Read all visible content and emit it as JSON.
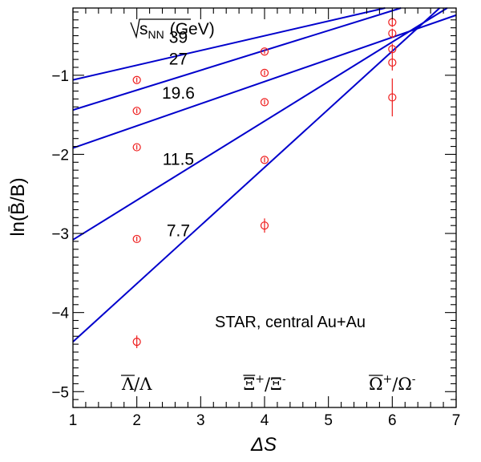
{
  "chart_data": {
    "type": "scatter",
    "xlabel": "ΔS",
    "ylabel": "ln(B̄/B)",
    "xlim": [
      1,
      7
    ],
    "ylim": [
      -5.2,
      -0.15
    ],
    "x_ticks": [
      "1",
      "2",
      "3",
      "4",
      "5",
      "6",
      "7"
    ],
    "y_ticks": [
      "−5",
      "−4",
      "−3",
      "−2",
      "−1"
    ],
    "grid": false,
    "legend": "none",
    "colors": {
      "fit_line": "#0000cc",
      "points": "#ee1c1c",
      "axis": "#000000"
    },
    "legend_title": "√s_NN (GeV)",
    "legend_title_parts": {
      "root": "s",
      "sub": "NN",
      "unit": "(GeV)"
    },
    "series": [
      {
        "name": "39",
        "x": [
          2,
          4,
          6,
          6
        ],
        "y": [
          -1.06,
          -0.7,
          -0.33,
          -0.47
        ],
        "err": [
          0.03,
          0.03,
          0.06,
          0.06
        ],
        "fit": {
          "intercept": -1.245,
          "slope": 0.186
        }
      },
      {
        "name": "27",
        "x": [
          2,
          4,
          6,
          6
        ],
        "y": [
          -1.45,
          -0.97,
          -0.67,
          -0.84
        ],
        "err": [
          0.03,
          0.03,
          0.07,
          0.1
        ],
        "fit": {
          "intercept": -1.69,
          "slope": 0.251
        }
      },
      {
        "name": "19.6",
        "x": [
          2,
          4,
          6
        ],
        "y": [
          -1.91,
          -1.34,
          -1.28
        ],
        "err": [
          0.03,
          0.03,
          0.24
        ],
        "fit": {
          "intercept": -2.2,
          "slope": 0.28
        }
      },
      {
        "name": "11.5",
        "x": [
          2,
          4
        ],
        "y": [
          -3.07,
          -2.07
        ],
        "err": [
          0.03,
          0.03
        ],
        "fit": {
          "intercept": -3.58,
          "slope": 0.5
        }
      },
      {
        "name": "7.7",
        "x": [
          2,
          4
        ],
        "y": [
          -4.37,
          -2.9
        ],
        "err": [
          0.08,
          0.09
        ],
        "fit": {
          "intercept": -5.105,
          "slope": 0.735
        }
      }
    ],
    "annotations": {
      "experiment": "STAR, central Au+Au",
      "particles": [
        {
          "base": "Λ",
          "over": "Λ",
          "sep": "/",
          "sup_bar": "",
          "sup_base": ""
        },
        {
          "base": "Ξ",
          "over": "Ξ",
          "sep": "/",
          "sup_bar": "+",
          "sup_base": "-"
        },
        {
          "base": "Ω",
          "over": "Ω",
          "sep": "/",
          "sup_bar": "+",
          "sup_base": "-"
        }
      ]
    }
  }
}
